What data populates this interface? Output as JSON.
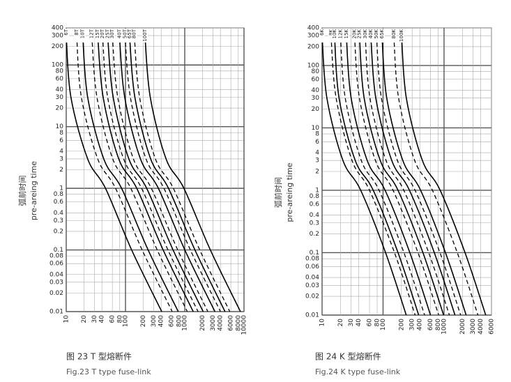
{
  "chart_data": [
    {
      "type": "line",
      "log_x": true,
      "log_y": true,
      "grid": true,
      "ylabel_cn": "弧前时间",
      "ylabel": "pre-areing time",
      "caption_cn": "图 23  T 型熔断件",
      "caption_en": "Fig.23   T type fuse-link",
      "xlim": [
        10,
        10000
      ],
      "ylim": [
        0.01,
        400
      ],
      "xticks": [
        10,
        20,
        30,
        40,
        60,
        80,
        100,
        200,
        300,
        400,
        600,
        800,
        1000,
        2000,
        3000,
        4000,
        6000,
        8000,
        10000
      ],
      "yticks": [
        0.01,
        0.02,
        0.03,
        0.04,
        0.06,
        0.08,
        0.1,
        0.2,
        0.3,
        0.4,
        0.6,
        0.8,
        1,
        2,
        3,
        4,
        6,
        8,
        10,
        20,
        30,
        40,
        60,
        80,
        100,
        200,
        300,
        400
      ],
      "series": [
        {
          "name": "6T",
          "dashed": false,
          "color": "#000000",
          "x": [
            10,
            12,
            23,
            46,
            127,
            409
          ],
          "values": [
            300,
            30,
            3,
            1,
            0.1,
            0.01
          ]
        },
        {
          "name": "8T",
          "dashed": true,
          "color": "#000000",
          "x": [
            15,
            18,
            34,
            68,
            191,
            614
          ],
          "values": [
            300,
            30,
            3,
            1,
            0.1,
            0.01
          ]
        },
        {
          "name": "10T",
          "dashed": false,
          "color": "#000000",
          "x": [
            19,
            23,
            43,
            86,
            241,
            777
          ],
          "values": [
            300,
            30,
            3,
            1,
            0.1,
            0.01
          ]
        },
        {
          "name": "12T",
          "dashed": true,
          "color": "#000000",
          "x": [
            27,
            33,
            61,
            123,
            343,
            1104
          ],
          "values": [
            300,
            30,
            3,
            1,
            0.1,
            0.01
          ]
        },
        {
          "name": "15T",
          "dashed": false,
          "color": "#000000",
          "x": [
            34,
            42,
            77,
            155,
            432,
            1391
          ],
          "values": [
            300,
            30,
            3,
            1,
            0.1,
            0.01
          ]
        },
        {
          "name": "20T",
          "dashed": true,
          "color": "#000000",
          "x": [
            41,
            50,
            93,
            187,
            521,
            1677
          ],
          "values": [
            300,
            30,
            3,
            1,
            0.1,
            0.01
          ]
        },
        {
          "name": "25T",
          "dashed": false,
          "color": "#000000",
          "x": [
            50,
            62,
            114,
            228,
            635,
            2045
          ],
          "values": [
            300,
            30,
            3,
            1,
            0.1,
            0.01
          ]
        },
        {
          "name": "30T",
          "dashed": true,
          "color": "#000000",
          "x": [
            60,
            74,
            136,
            273,
            762,
            2454
          ],
          "values": [
            300,
            30,
            3,
            1,
            0.1,
            0.01
          ]
        },
        {
          "name": "40T",
          "dashed": false,
          "color": "#000000",
          "x": [
            79,
            97,
            179,
            359,
            1003,
            3231
          ],
          "values": [
            300,
            30,
            3,
            1,
            0.1,
            0.01
          ]
        },
        {
          "name": "50T",
          "dashed": true,
          "color": "#000000",
          "x": [
            98,
            121,
            222,
            446,
            1245,
            4008
          ],
          "values": [
            300,
            30,
            3,
            1,
            0.1,
            0.01
          ]
        },
        {
          "name": "65T",
          "dashed": false,
          "color": "#000000",
          "x": [
            117,
            144,
            266,
            532,
            1486,
            4785
          ],
          "values": [
            300,
            30,
            3,
            1,
            0.1,
            0.01
          ]
        },
        {
          "name": "80T",
          "dashed": true,
          "color": "#000000",
          "x": [
            141,
            173,
            320,
            642,
            1791,
            5767
          ],
          "values": [
            300,
            30,
            3,
            1,
            0.1,
            0.01
          ]
        },
        {
          "name": "100T",
          "dashed": false,
          "color": "#000000",
          "x": [
            213,
            262,
            484,
            969,
            2705,
            8712
          ],
          "values": [
            300,
            30,
            3,
            1,
            0.1,
            0.01
          ]
        }
      ]
    },
    {
      "type": "line",
      "log_x": true,
      "log_y": true,
      "grid": true,
      "ylabel_cn": "弧前时间",
      "ylabel": "pre-areing time",
      "caption_cn": "图 24  K 型熔断件",
      "caption_en": "Fig.24  K type fuse-link",
      "xlim": [
        10,
        6000
      ],
      "ylim": [
        0.01,
        400
      ],
      "xticks": [
        10,
        20,
        30,
        40,
        60,
        80,
        100,
        200,
        300,
        400,
        600,
        800,
        1000,
        2000,
        3000,
        4000,
        6000
      ],
      "yticks": [
        0.01,
        0.02,
        0.03,
        0.04,
        0.06,
        0.08,
        0.1,
        0.2,
        0.3,
        0.4,
        0.6,
        0.8,
        1,
        2,
        3,
        4,
        6,
        8,
        10,
        20,
        30,
        40,
        60,
        80,
        100,
        200,
        300,
        400
      ],
      "series": [
        {
          "name": "6K",
          "dashed": false,
          "color": "#000000",
          "x": [
            10,
            12,
            22,
            43,
            110,
            240
          ],
          "values": [
            300,
            30,
            3,
            1,
            0.1,
            0.01
          ]
        },
        {
          "name": "8K",
          "dashed": true,
          "color": "#000000",
          "x": [
            14,
            17,
            31,
            60,
            154,
            336
          ],
          "values": [
            300,
            30,
            3,
            1,
            0.1,
            0.01
          ]
        },
        {
          "name": "10K",
          "dashed": false,
          "color": "#000000",
          "x": [
            16,
            19,
            35,
            69,
            176,
            384
          ],
          "values": [
            300,
            30,
            3,
            1,
            0.1,
            0.01
          ]
        },
        {
          "name": "12K",
          "dashed": true,
          "color": "#000000",
          "x": [
            20,
            24,
            44,
            86,
            220,
            480
          ],
          "values": [
            300,
            30,
            3,
            1,
            0.1,
            0.01
          ]
        },
        {
          "name": "15K",
          "dashed": false,
          "color": "#000000",
          "x": [
            25,
            30,
            55,
            108,
            275,
            600
          ],
          "values": [
            300,
            30,
            3,
            1,
            0.1,
            0.01
          ]
        },
        {
          "name": "20K",
          "dashed": true,
          "color": "#000000",
          "x": [
            34,
            41,
            75,
            146,
            374,
            816
          ],
          "values": [
            300,
            30,
            3,
            1,
            0.1,
            0.01
          ]
        },
        {
          "name": "25K",
          "dashed": false,
          "color": "#000000",
          "x": [
            41,
            49,
            90,
            176,
            451,
            984
          ],
          "values": [
            300,
            30,
            3,
            1,
            0.1,
            0.01
          ]
        },
        {
          "name": "30K",
          "dashed": true,
          "color": "#000000",
          "x": [
            51,
            61,
            112,
            219,
            561,
            1224
          ],
          "values": [
            300,
            30,
            3,
            1,
            0.1,
            0.01
          ]
        },
        {
          "name": "40K",
          "dashed": false,
          "color": "#000000",
          "x": [
            63,
            76,
            139,
            271,
            693,
            1512
          ],
          "values": [
            300,
            30,
            3,
            1,
            0.1,
            0.01
          ]
        },
        {
          "name": "50K",
          "dashed": true,
          "color": "#000000",
          "x": [
            78,
            94,
            172,
            335,
            858,
            1872
          ],
          "values": [
            300,
            30,
            3,
            1,
            0.1,
            0.01
          ]
        },
        {
          "name": "65K",
          "dashed": false,
          "color": "#000000",
          "x": [
            96,
            115,
            211,
            413,
            1056,
            2304
          ],
          "values": [
            300,
            30,
            3,
            1,
            0.1,
            0.01
          ]
        },
        {
          "name": "80K",
          "dashed": true,
          "color": "#000000",
          "x": [
            150,
            180,
            330,
            645,
            1650,
            3600
          ],
          "values": [
            300,
            30,
            3,
            1,
            0.1,
            0.01
          ]
        },
        {
          "name": "100K",
          "dashed": false,
          "color": "#000000",
          "x": [
            201,
            241,
            442,
            864,
            2211,
            4824
          ],
          "values": [
            300,
            30,
            3,
            1,
            0.1,
            0.01
          ]
        }
      ]
    }
  ]
}
